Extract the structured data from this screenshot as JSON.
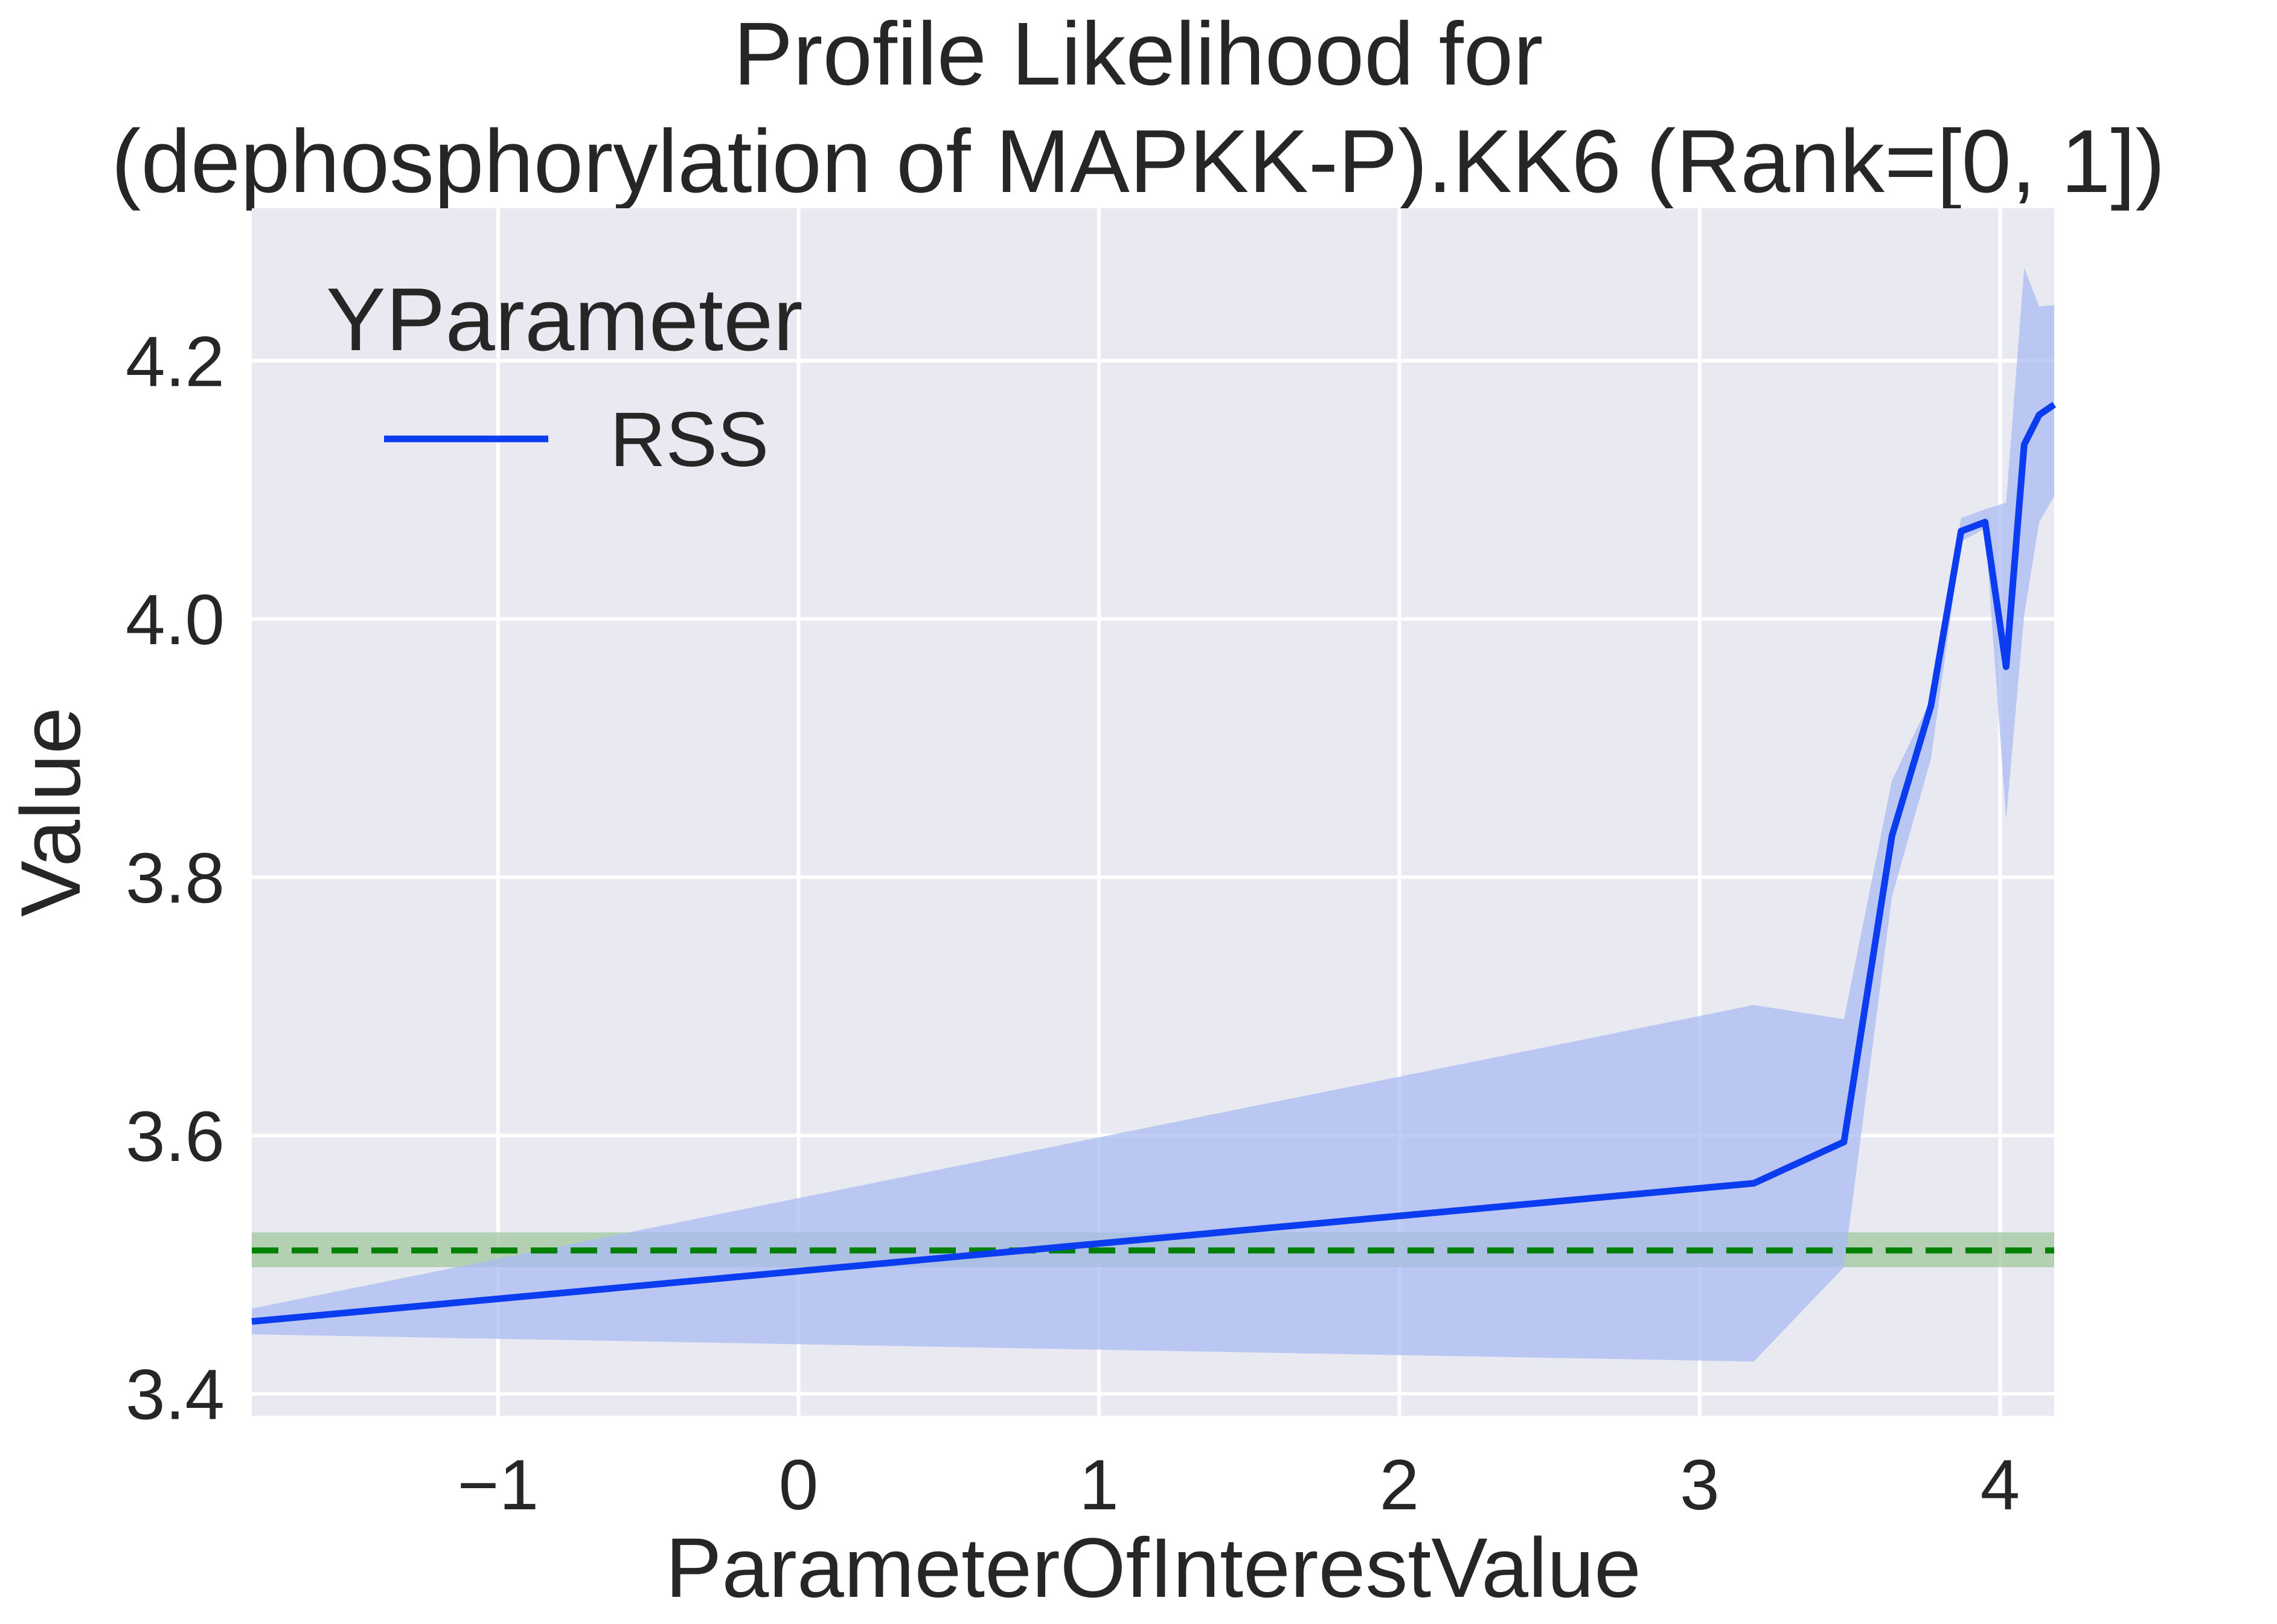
{
  "chart_data": {
    "type": "line",
    "title_line1": "Profile Likelihood for",
    "title_line2": "(dephosphorylation of MAPKK-P).KK6 (Rank=[0, 1])",
    "xlabel": "ParameterOfInterestValue",
    "ylabel": "Value",
    "xlim": [
      -1.82,
      4.18
    ],
    "ylim": [
      3.383,
      4.318
    ],
    "xticks": [
      -1,
      0,
      1,
      2,
      3,
      4
    ],
    "xtick_labels": [
      "−1",
      "0",
      "1",
      "2",
      "3",
      "4"
    ],
    "yticks": [
      3.4,
      3.6,
      3.8,
      4.0,
      4.2
    ],
    "ytick_labels": [
      "3.4",
      "3.6",
      "3.8",
      "4.0",
      "4.2"
    ],
    "grid": true,
    "legend": {
      "title": "YParameter",
      "position": "top-left"
    },
    "series": [
      {
        "name": "RSS",
        "color": "#0b3cf0",
        "band_color": "#a9bbf3",
        "x": [
          -1.82,
          3.18,
          3.48,
          3.64,
          3.77,
          3.87,
          3.95,
          4.02,
          4.08,
          4.13,
          4.18
        ],
        "y": [
          3.456,
          3.563,
          3.595,
          3.832,
          3.933,
          4.068,
          4.075,
          3.963,
          4.135,
          4.158,
          4.166
        ],
        "lower": [
          3.446,
          3.425,
          3.498,
          3.785,
          3.892,
          4.06,
          4.07,
          3.845,
          4.003,
          4.075,
          4.095
        ],
        "upper": [
          3.466,
          3.701,
          3.69,
          3.875,
          3.938,
          4.078,
          4.085,
          4.09,
          4.272,
          4.242,
          4.243
        ]
      }
    ],
    "reference_line": {
      "y": 3.511,
      "color": "#008000",
      "band": [
        3.498,
        3.525
      ],
      "band_color": "#a6c9a3"
    }
  }
}
